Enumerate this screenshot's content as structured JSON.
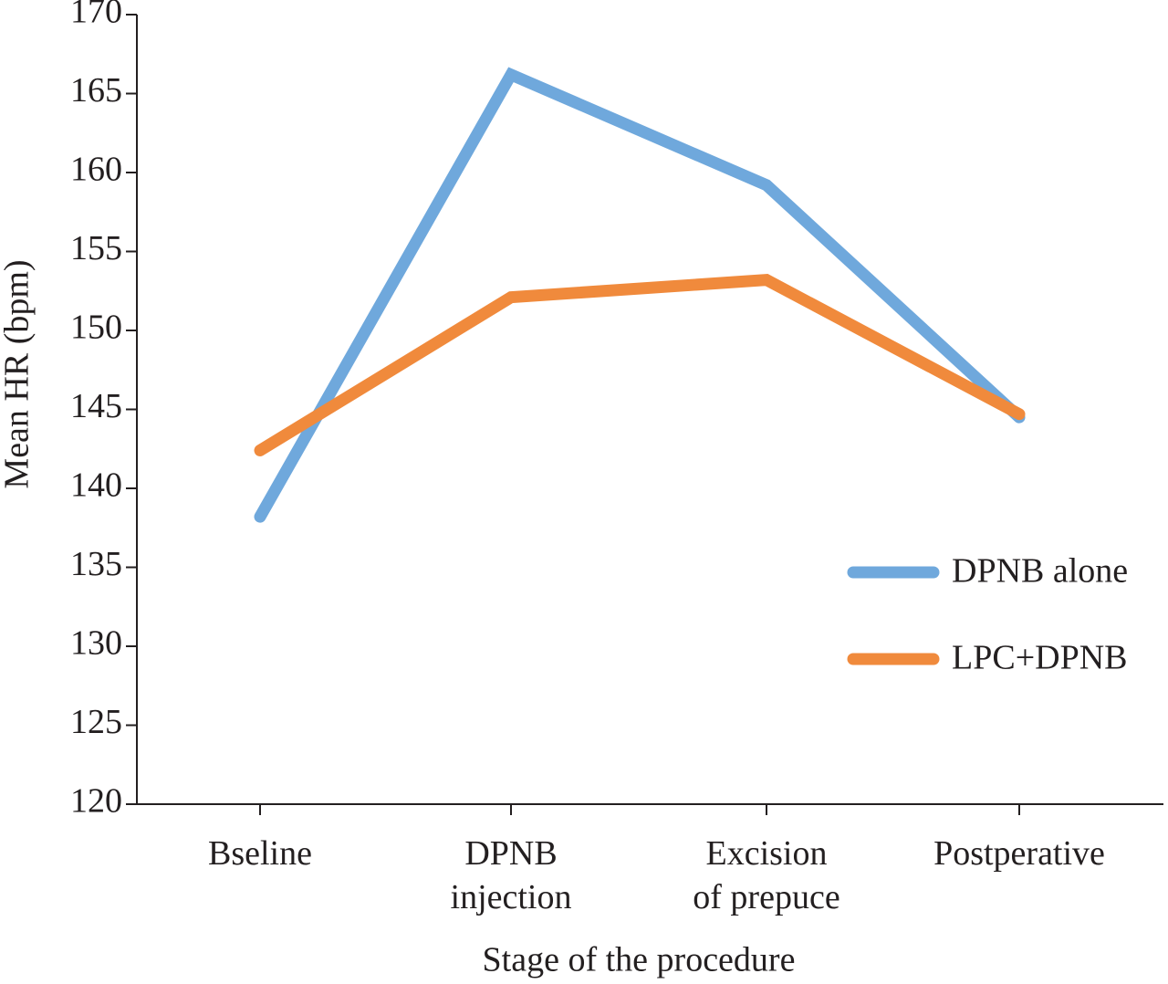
{
  "chart_data": {
    "type": "line",
    "x_label": "Stage of the procedure",
    "y_label": "Mean HR (bpm)",
    "categories": [
      "Bseline",
      "DPNB\ninjection",
      "Excision\nof prepuce",
      "Postperative"
    ],
    "series": [
      {
        "name": "DPNB alone",
        "color": "#6fa8dc",
        "values": [
          138.2,
          166.2,
          159.2,
          144.5
        ]
      },
      {
        "name": "LPC+DPNB",
        "color": "#f08a3c",
        "values": [
          142.4,
          152.1,
          153.2,
          144.7
        ]
      }
    ],
    "ylim": [
      120,
      170
    ],
    "yticks": [
      120,
      125,
      130,
      135,
      140,
      145,
      150,
      155,
      160,
      165,
      170
    ],
    "legend": "right",
    "grid": false
  }
}
